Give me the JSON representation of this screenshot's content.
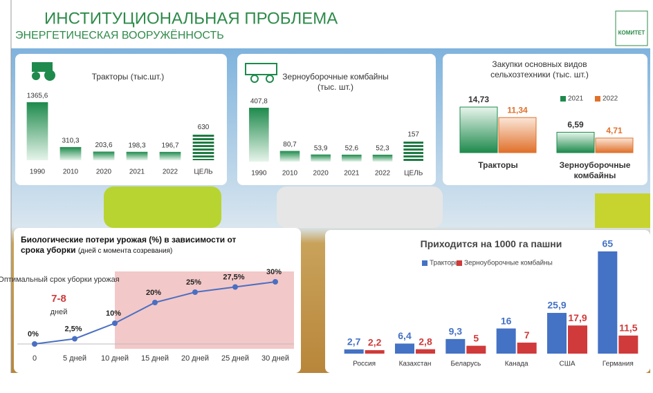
{
  "header": {
    "title": "ИНСТИТУЦИОНАЛЬНАЯ ПРОБЛЕМА",
    "subtitle": "ЭНЕРГЕТИЧЕСКАЯ ВООРУЖЁННОСТЬ",
    "logo": "КОМИТЕТ"
  },
  "chart_data": [
    {
      "type": "bar",
      "title": "Тракторы (тыс.шт.)",
      "color": "#1e8a4c",
      "categories": [
        "1990",
        "2010",
        "2020",
        "2021",
        "2022",
        "ЦЕЛЬ"
      ],
      "values": [
        1365.6,
        310.3,
        203.6,
        198.3,
        196.7,
        630
      ],
      "value_labels": [
        "1365,6",
        "310,3",
        "203,6",
        "198,3",
        "196,7",
        "630"
      ]
    },
    {
      "type": "bar",
      "title": "Зерноуборочные комбайны (тыс. шт.)",
      "color": "#1e8a4c",
      "categories": [
        "1990",
        "2010",
        "2020",
        "2021",
        "2022",
        "ЦЕЛЬ"
      ],
      "values": [
        407.8,
        80.7,
        53.9,
        52.6,
        52.3,
        157
      ],
      "value_labels": [
        "407,8",
        "80,7",
        "53,9",
        "52,6",
        "52,3",
        "157"
      ]
    },
    {
      "type": "bar",
      "title": "Закупки основных видов сельхозтехники (тыс. шт.)",
      "categories": [
        "Тракторы",
        "Зерноуборочные комбайны"
      ],
      "series": [
        {
          "name": "2021",
          "color": "#1e8a4c",
          "values": [
            14.73,
            6.59
          ],
          "value_labels": [
            "14,73",
            "6,59"
          ]
        },
        {
          "name": "2022",
          "color": "#e0702a",
          "values": [
            11.34,
            4.71
          ],
          "value_labels": [
            "11,34",
            "4,71"
          ]
        }
      ]
    },
    {
      "type": "line",
      "title": "Биологические потери урожая (%) в зависимости от срока уборки",
      "subtitle": "(дней с момента созревания)",
      "color": "#4a6fc2",
      "categories": [
        "0",
        "5 дней",
        "10 дней",
        "15 дней",
        "20 дней",
        "25 дней",
        "30 дней"
      ],
      "values": [
        0,
        2.5,
        10,
        20,
        25,
        27.5,
        30
      ],
      "value_labels": [
        "0%",
        "2,5%",
        "10%",
        "20%",
        "25%",
        "27,5%",
        "30%"
      ],
      "annotations": [
        "Оптимальный срок уборки урожая",
        "7-8",
        "дней"
      ]
    },
    {
      "type": "bar",
      "title": "Приходится на 1000 га пашни",
      "categories": [
        "Россия",
        "Казахстан",
        "Беларусь",
        "Канада",
        "США",
        "Германия"
      ],
      "series": [
        {
          "name": "Тракторы",
          "color": "#4472c4",
          "values": [
            2.7,
            6.4,
            9.3,
            16,
            25.9,
            65
          ],
          "value_labels": [
            "2,7",
            "6,4",
            "9,3",
            "16",
            "25,9",
            "65"
          ]
        },
        {
          "name": "Зерноуборочные комбайны",
          "color": "#d03a3a",
          "values": [
            2.2,
            2.8,
            5,
            7,
            17.9,
            11.5
          ],
          "value_labels": [
            "2,2",
            "2,8",
            "5",
            "7",
            "17,9",
            "11,5"
          ]
        }
      ]
    }
  ]
}
